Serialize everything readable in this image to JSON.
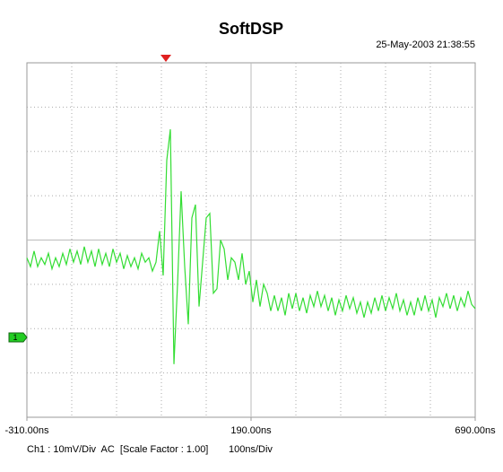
{
  "chart_data": {
    "type": "line",
    "title": "SoftDSP",
    "timestamp": "25-May-2003 21:38:55",
    "channel_marker": "1",
    "footer_left": "Ch1 : 10mV/Div  AC  [Scale Factor : 1.00]",
    "footer_right": "100ns/Div",
    "color": "#33dd33",
    "xlim": [
      -310,
      690
    ],
    "ylim": [
      -40,
      40
    ],
    "xticks": [
      {
        "value": -310,
        "label": "-310.00ns"
      },
      {
        "value": 190,
        "label": "190.00ns"
      },
      {
        "value": 690,
        "label": "690.00ns"
      }
    ],
    "xgrid": [
      -210,
      -110,
      -10,
      90,
      290,
      390,
      490,
      590
    ],
    "yticks": [
      -30,
      -20,
      -10,
      10,
      20,
      30
    ],
    "grid": true,
    "x": [
      -310,
      -302,
      -294,
      -286,
      -278,
      -270,
      -262,
      -254,
      -246,
      -238,
      -230,
      -222,
      -214,
      -206,
      -198,
      -190,
      -182,
      -174,
      -166,
      -158,
      -150,
      -142,
      -134,
      -126,
      -118,
      -110,
      -102,
      -94,
      -86,
      -78,
      -70,
      -62,
      -54,
      -46,
      -38,
      -30,
      -22,
      -14,
      -6,
      2,
      10,
      18,
      26,
      34,
      42,
      50,
      58,
      66,
      74,
      82,
      90,
      98,
      106,
      114,
      122,
      130,
      138,
      146,
      154,
      162,
      170,
      178,
      186,
      194,
      202,
      210,
      218,
      226,
      234,
      242,
      250,
      258,
      266,
      274,
      282,
      290,
      298,
      306,
      314,
      322,
      330,
      338,
      346,
      354,
      362,
      370,
      378,
      386,
      394,
      402,
      410,
      418,
      426,
      434,
      442,
      450,
      458,
      466,
      474,
      482,
      490,
      498,
      506,
      514,
      522,
      530,
      538,
      546,
      554,
      562,
      570,
      578,
      586,
      594,
      602,
      610,
      618,
      626,
      634,
      642,
      650,
      658,
      666,
      674,
      682,
      690
    ],
    "values": [
      -4,
      -6,
      -2.5,
      -6,
      -4,
      -5.5,
      -3,
      -6.5,
      -4,
      -6,
      -3,
      -5.5,
      -2,
      -5,
      -2.5,
      -5.5,
      -1.5,
      -5,
      -2.5,
      -6,
      -2,
      -5.5,
      -3,
      -6,
      -2,
      -5,
      -3,
      -6.5,
      -3.5,
      -6,
      -4,
      -6.5,
      -3,
      -5,
      -4,
      -7,
      -5,
      2,
      -8,
      18,
      25,
      -28,
      -10,
      11,
      -6,
      -19,
      5,
      8,
      -15,
      -5,
      5,
      6,
      -12,
      -11,
      0,
      -2,
      -9,
      -4,
      -5,
      -9,
      -3,
      -10,
      -7,
      -14,
      -9,
      -15,
      -10,
      -12,
      -16,
      -12.5,
      -16,
      -13,
      -17,
      -12,
      -15.5,
      -12,
      -16,
      -13,
      -16.5,
      -12.5,
      -15,
      -11.5,
      -15,
      -12.5,
      -16,
      -13,
      -17,
      -13.5,
      -16,
      -12.5,
      -15.5,
      -13,
      -16.5,
      -14,
      -17.5,
      -14,
      -16.5,
      -13,
      -16,
      -12.5,
      -16,
      -13,
      -15.5,
      -12,
      -16,
      -13.5,
      -17,
      -14,
      -17,
      -13,
      -16,
      -12.5,
      -16,
      -13.5,
      -17.5,
      -13,
      -15,
      -12,
      -15.5,
      -12.5,
      -16,
      -13,
      -15,
      -11.5,
      -14.5,
      -15.5
    ]
  }
}
